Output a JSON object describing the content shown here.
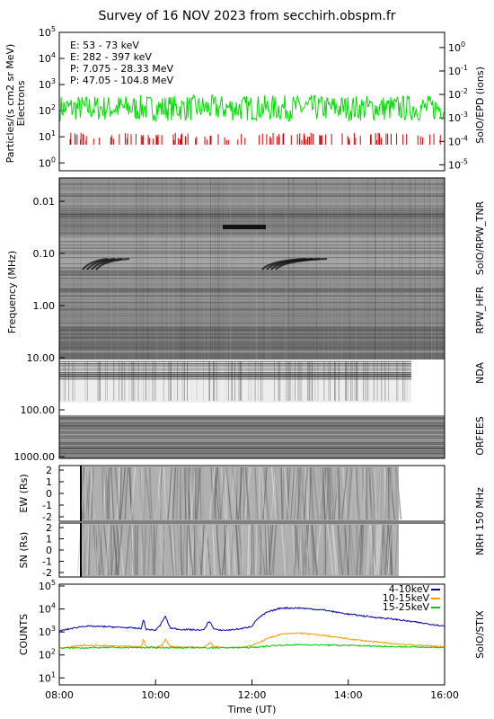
{
  "title": "Survey of 16 NOV 2023 from secchirh.obspm.fr",
  "colors": {
    "epd_e_low": "#00dd00",
    "epd_e_high": "#cc0000",
    "epd_p_low": "#000000",
    "epd_p_high": "#0000cc",
    "stix_4_10": "#0000aa",
    "stix_10_15": "#ff9900",
    "stix_15_25": "#00cc00"
  },
  "chart_data": [
    {
      "type": "line",
      "panel": "epd",
      "ylabel": "Particles/(s cm2 sr MeV)\nElectrons",
      "right_label": "SolO/EPD (ions)",
      "yscale": "log",
      "ylim": [
        0.5,
        100000
      ],
      "yticks_left": [
        "10^0",
        "10^1",
        "10^2",
        "10^3",
        "10^4",
        "10^5"
      ],
      "yticks_right": [
        "10^-5",
        "10^-4",
        "10^-3",
        "10^-2",
        "10^-1",
        "10^0"
      ],
      "legend": [
        "E: 53 - 73 keV",
        "E: 282 - 397 keV",
        "P: 7.075 - 28.33 MeV",
        "P: 47.05 - 104.8 MeV"
      ],
      "series": [
        {
          "name": "E: 53 - 73 keV",
          "level": 100,
          "range": [
            40,
            400
          ]
        },
        {
          "name": "E: 282 - 397 keV",
          "level": 8,
          "range": [
            5,
            12
          ]
        }
      ]
    },
    {
      "type": "heatmap",
      "panel": "radio",
      "ylabel": "Frequency (MHz)",
      "yscale": "log",
      "yticks": [
        "0.01",
        "0.10",
        "1.00",
        "10.00",
        "100.00",
        "1000.00"
      ],
      "right_labels": [
        "SolO/RPW_TNR",
        "RPW_HFR",
        "NDA",
        "ORFEES"
      ]
    },
    {
      "type": "heatmap",
      "panel": "nrh_ew",
      "ylabel": "EW (Rs)",
      "yticks": [
        "2",
        "1",
        "0",
        "-1",
        "-2"
      ],
      "right_label": "NRH 150 MHz"
    },
    {
      "type": "heatmap",
      "panel": "nrh_sn",
      "ylabel": "SN (Rs)",
      "yticks": [
        "2",
        "1",
        "0",
        "-1",
        "-2"
      ]
    },
    {
      "type": "line",
      "panel": "stix",
      "ylabel": "COUNTS",
      "right_label": "SolO/STIX",
      "xlabel": "Time (UT)",
      "xticks": [
        "08:00",
        "10:00",
        "12:00",
        "14:00",
        "16:00"
      ],
      "yscale": "log",
      "ylim": [
        5,
        120000
      ],
      "yticks": [
        "10^1",
        "10^2",
        "10^3",
        "10^4",
        "10^5"
      ],
      "series": [
        {
          "name": "4-10keV",
          "x": [
            8.0,
            8.5,
            9.0,
            9.5,
            9.7,
            9.75,
            9.8,
            10.0,
            10.1,
            10.2,
            10.3,
            10.5,
            11.0,
            11.1,
            11.15,
            11.2,
            11.3,
            11.5,
            11.8,
            12.0,
            12.1,
            12.3,
            12.6,
            13.0,
            13.5,
            13.8,
            14.0,
            14.5,
            15.0,
            15.5,
            16.0
          ],
          "y": [
            1100,
            1800,
            1700,
            1500,
            1400,
            3500,
            1300,
            1200,
            2000,
            5000,
            1500,
            1300,
            1200,
            2800,
            2500,
            1400,
            1200,
            1200,
            1400,
            1800,
            3500,
            7000,
            11000,
            11000,
            9000,
            7000,
            6000,
            4500,
            3500,
            2500,
            1800
          ]
        },
        {
          "name": "10-15keV",
          "x": [
            8.0,
            8.5,
            9.0,
            9.5,
            9.7,
            9.75,
            9.8,
            10.0,
            10.15,
            10.2,
            10.3,
            10.5,
            11.0,
            11.15,
            11.2,
            11.5,
            11.8,
            12.0,
            12.3,
            12.6,
            13.0,
            13.5,
            14.0,
            14.5,
            15.0,
            15.5,
            16.0
          ],
          "y": [
            200,
            260,
            250,
            230,
            220,
            500,
            220,
            210,
            280,
            500,
            240,
            220,
            210,
            350,
            230,
            210,
            220,
            250,
            500,
            800,
            900,
            700,
            500,
            380,
            300,
            260,
            230
          ]
        },
        {
          "name": "15-25keV",
          "x": [
            8.0,
            9.0,
            10.0,
            11.0,
            12.0,
            12.5,
            13.0,
            14.0,
            15.0,
            16.0
          ],
          "y": [
            200,
            210,
            210,
            205,
            210,
            260,
            280,
            260,
            230,
            210
          ]
        }
      ]
    }
  ],
  "legend_stix": [
    "4-10keV",
    "10-15keV",
    "15-25keV"
  ]
}
